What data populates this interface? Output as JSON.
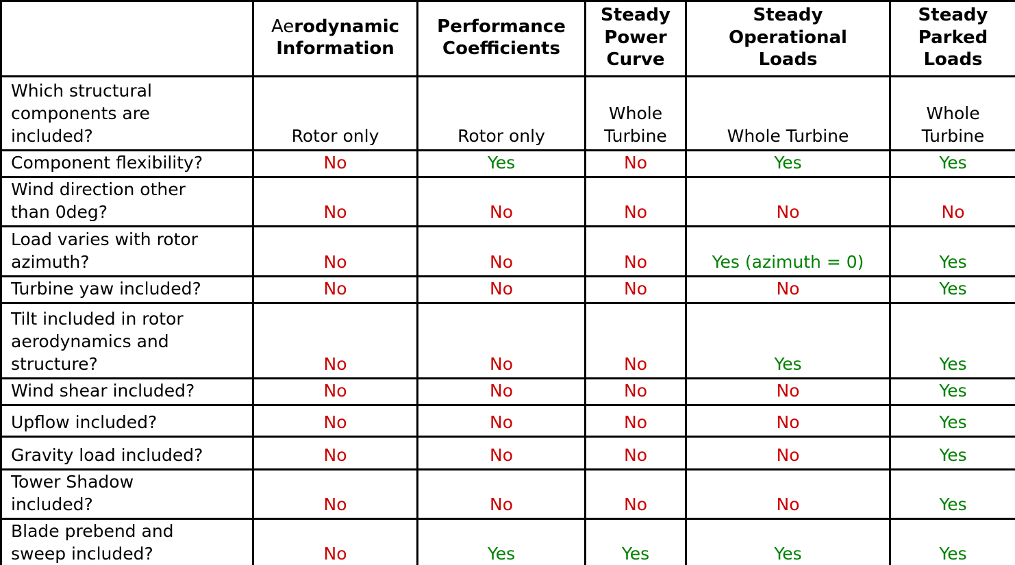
{
  "colors": {
    "yes_green": "#008000",
    "no_red": "#cc0000",
    "border_black": "#000000",
    "header_text": "#000000",
    "background": "#ffffff"
  },
  "table": {
    "corner_label": "",
    "columns": [
      {
        "id": "aerodynamic-information",
        "prefix_regular": "Ae",
        "label": "rodynamic\nInformation",
        "full_label": "Aerodynamic Information"
      },
      {
        "id": "performance-coefficients",
        "prefix_regular": "",
        "label": "Performance\nCoefficients",
        "full_label": "Performance Coefficients"
      },
      {
        "id": "steady-power-curve",
        "prefix_regular": "",
        "label": "Steady\nPower\nCurve",
        "full_label": "Steady Power Curve"
      },
      {
        "id": "steady-operational-loads",
        "prefix_regular": "",
        "label": "Steady\nOperational\nLoads",
        "full_label": "Steady Operational Loads"
      },
      {
        "id": "steady-parked-loads",
        "prefix_regular": "",
        "label": "Steady\nParked\nLoads",
        "full_label": "Steady Parked Loads"
      }
    ],
    "rows": [
      {
        "label": "Which structural\ncomponents are\nincluded?",
        "values": [
          "Rotor only",
          "Rotor only",
          "Whole\nTurbine",
          "Whole Turbine",
          "Whole\nTurbine"
        ]
      },
      {
        "label": "Component flexibility?",
        "values": [
          "No",
          "Yes",
          "No",
          "Yes",
          "Yes"
        ]
      },
      {
        "label": "Wind direction other\nthan 0deg?",
        "values": [
          "No",
          "No",
          "No",
          "No",
          "No"
        ]
      },
      {
        "label": "Load varies with rotor\nazimuth?",
        "values": [
          "No",
          "No",
          "No",
          "Yes (azimuth = 0)",
          "Yes"
        ]
      },
      {
        "label": "Turbine yaw included?",
        "values": [
          "No",
          "No",
          "No",
          "No",
          "Yes"
        ]
      },
      {
        "label": "Tilt included in rotor\naerodynamics and\nstructure?",
        "values": [
          "No",
          "No",
          "No",
          "Yes",
          "Yes"
        ]
      },
      {
        "label": "Wind shear included?",
        "values": [
          "No",
          "No",
          "No",
          "No",
          "Yes"
        ]
      },
      {
        "label": "Upflow included?",
        "values": [
          "No",
          "No",
          "No",
          "No",
          "Yes"
        ]
      },
      {
        "label": "Gravity load included?",
        "values": [
          "No",
          "No",
          "No",
          "No",
          "Yes"
        ]
      },
      {
        "label": "Tower Shadow\nincluded?",
        "values": [
          "No",
          "No",
          "No",
          "No",
          "Yes"
        ]
      },
      {
        "label": "Blade prebend and\nsweep included?",
        "values": [
          "No",
          "Yes",
          "Yes",
          "Yes",
          "Yes"
        ]
      }
    ]
  }
}
